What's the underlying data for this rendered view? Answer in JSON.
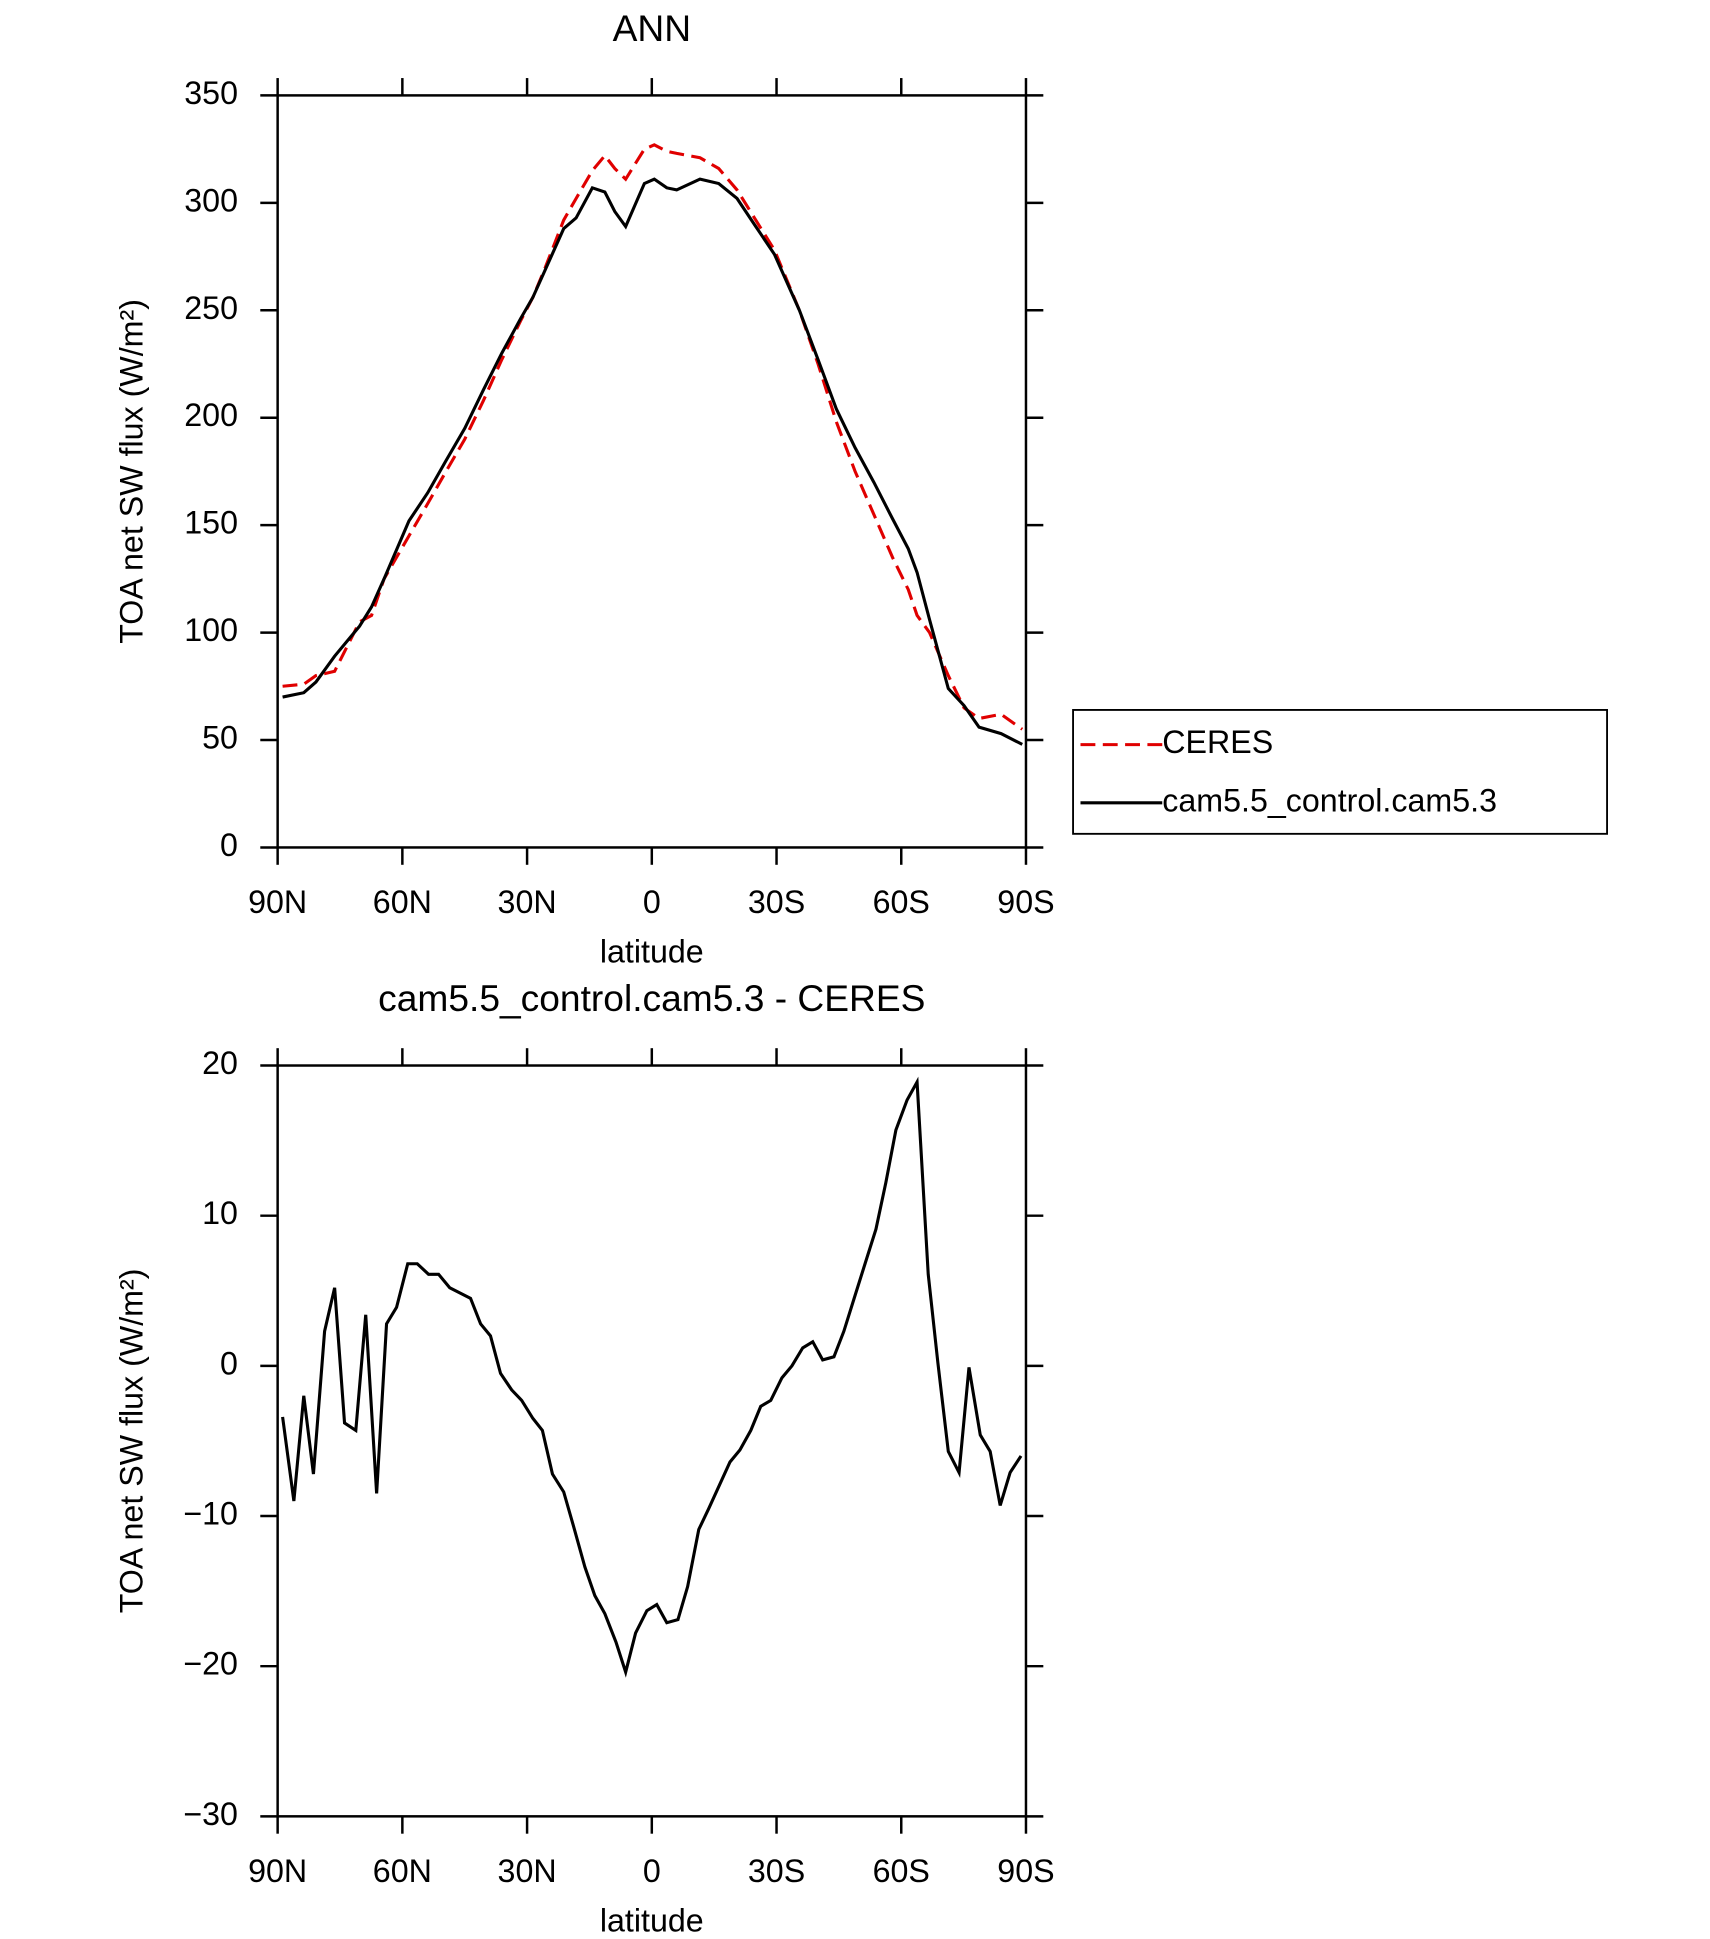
{
  "chart_data": [
    {
      "type": "line",
      "title": "ANN",
      "xlabel": "latitude",
      "ylabel": "TOA net SW flux (W/m²)",
      "xlim": [
        90,
        -90
      ],
      "xticks": [
        {
          "value": 90,
          "label": "90N"
        },
        {
          "value": 60,
          "label": "60N"
        },
        {
          "value": 30,
          "label": "30N"
        },
        0,
        {
          "value": -30,
          "label": "30S"
        },
        {
          "value": -60,
          "label": "60S"
        },
        {
          "value": -90,
          "label": "90S"
        }
      ],
      "ylim": [
        0,
        350
      ],
      "yticks": [
        0,
        50,
        100,
        150,
        200,
        250,
        300,
        350
      ],
      "legend": "right",
      "x": [
        88.8,
        83.7,
        80.8,
        76.3,
        70.3,
        67.4,
        64.4,
        58.4,
        53.9,
        49.5,
        45,
        40.5,
        36.1,
        31.6,
        28.6,
        25.6,
        21.2,
        18.2,
        14.3,
        11.3,
        8.9,
        6.3,
        1.8,
        -0.6,
        -3.6,
        -6,
        -11.6,
        -16.1,
        -20.5,
        -25,
        -29.5,
        -35.5,
        -40,
        -44.4,
        -48.9,
        -53.4,
        -57.9,
        -61.7,
        -63.8,
        -66.8,
        -71.3,
        -75.1,
        -78.7,
        -84,
        -89.1
      ],
      "series": [
        {
          "name": "CERES",
          "color": "#e00000",
          "linestyle": "dashed",
          "values": [
            75,
            76,
            80,
            82,
            105,
            108,
            125,
            145,
            160,
            175,
            190,
            208,
            227,
            245,
            256,
            270,
            292,
            302,
            315,
            322,
            316,
            311,
            325,
            327,
            324,
            323,
            321,
            316,
            306,
            292,
            278,
            250,
            225,
            198,
            175,
            155,
            135,
            120,
            108,
            100,
            80,
            65,
            60,
            62,
            55
          ]
        },
        {
          "name": "cam5.5_control.cam5.3",
          "color": "#000000",
          "linestyle": "solid",
          "values": [
            70,
            72,
            77,
            89,
            103,
            112,
            125,
            152,
            165,
            180,
            195,
            213,
            230,
            246,
            256,
            269,
            288,
            293,
            307,
            305,
            296,
            289,
            309,
            311,
            307,
            306,
            311,
            309,
            302,
            289,
            276,
            250,
            227,
            204,
            186,
            170,
            153,
            139,
            128,
            106,
            74,
            66,
            56,
            53,
            48
          ]
        }
      ]
    },
    {
      "type": "line",
      "title": "cam5.5_control.cam5.3 - CERES",
      "xlabel": "latitude",
      "ylabel": "TOA net SW flux (W/m²)",
      "xlim": [
        90,
        -90
      ],
      "xticks": [
        {
          "value": 90,
          "label": "90N"
        },
        {
          "value": 60,
          "label": "60N"
        },
        {
          "value": 30,
          "label": "30N"
        },
        0,
        {
          "value": -30,
          "label": "30S"
        },
        {
          "value": -60,
          "label": "60S"
        },
        {
          "value": -90,
          "label": "90S"
        }
      ],
      "ylim": [
        -30,
        20
      ],
      "yticks": [
        {
          "value": -30,
          "label": "−30"
        },
        {
          "value": -20,
          "label": "−20"
        },
        {
          "value": -10,
          "label": "−10"
        },
        0,
        10,
        20
      ],
      "x": [
        88.8,
        86.1,
        83.7,
        81.4,
        78.7,
        76.3,
        73.9,
        71.2,
        68.8,
        66.2,
        63.8,
        61.4,
        58.7,
        56.4,
        53.7,
        51.3,
        48.6,
        43.6,
        41.2,
        38.8,
        36.4,
        33.7,
        31.3,
        28.6,
        26.3,
        23.9,
        21.2,
        18.8,
        16.1,
        13.7,
        11.3,
        8.6,
        6.3,
        3.9,
        1.2,
        -1.2,
        -3.6,
        -6.3,
        -8.6,
        -11.3,
        -13.7,
        -18.8,
        -21.2,
        -23.8,
        -26.2,
        -28.6,
        -31.3,
        -33.7,
        -36.3,
        -38.7,
        -41.1,
        -43.8,
        -46.2,
        -48.9,
        -51.3,
        -53.9,
        -56.3,
        -58.7,
        -61.4,
        -63.8,
        -66.5,
        -68.8,
        -71.3,
        -73.9,
        -76.3,
        -79,
        -81.4,
        -83.8,
        -86.2,
        -88.8
      ],
      "series": [
        {
          "color": "#000000",
          "linestyle": "solid",
          "values": [
            -3.4,
            -9,
            -2,
            -7.2,
            2.3,
            5.2,
            -3.8,
            -4.3,
            3.4,
            -8.5,
            2.8,
            3.9,
            6.8,
            6.8,
            6.1,
            6.1,
            5.2,
            4.5,
            2.8,
            2.0,
            -0.5,
            -1.6,
            -2.3,
            -3.5,
            -4.3,
            -7.2,
            -8.4,
            -10.7,
            -13.4,
            -15.3,
            -16.5,
            -18.4,
            -20.4,
            -17.8,
            -16.3,
            -15.9,
            -17.1,
            -16.9,
            -14.7,
            -10.9,
            -9.5,
            -6.4,
            -5.6,
            -4.3,
            -2.7,
            -2.3,
            -0.8,
            0.0,
            1.2,
            1.6,
            0.4,
            0.6,
            2.3,
            4.7,
            6.8,
            9.1,
            12.2,
            15.7,
            17.7,
            18.9,
            6.1,
            0.2,
            -5.7,
            -7.1,
            -0.1,
            -4.6,
            -5.7,
            -9.3,
            -7.1,
            -6.0
          ]
        }
      ]
    }
  ]
}
